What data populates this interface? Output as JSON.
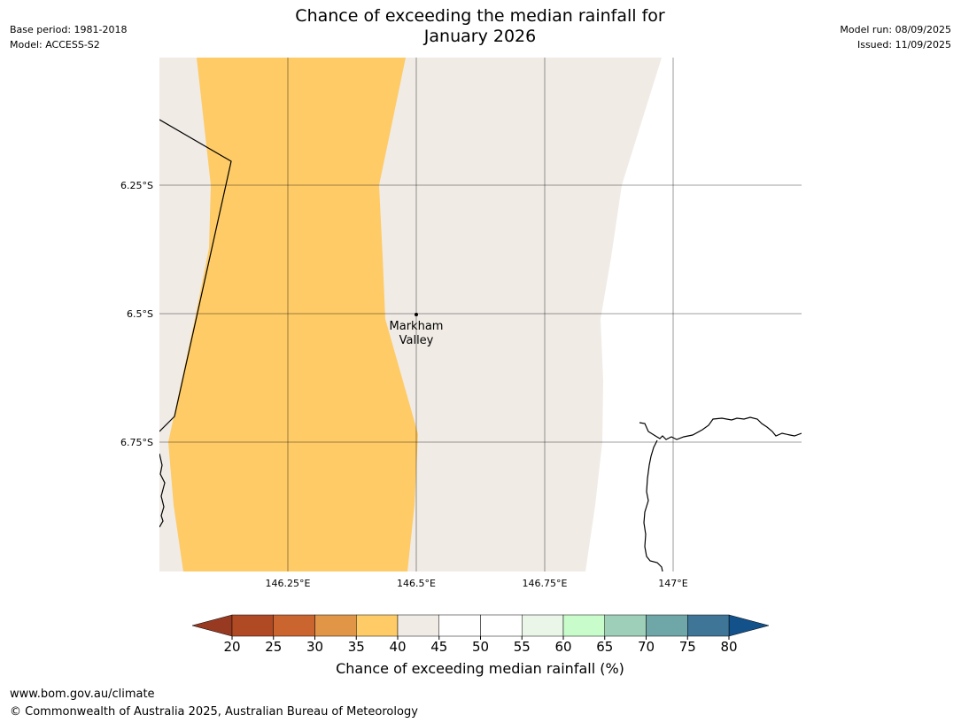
{
  "meta": {
    "base_period": "Base period: 1981-2018",
    "model": "Model: ACCESS-S2",
    "model_run": "Model run: 08/09/2025",
    "issued": "Issued: 11/09/2025"
  },
  "title_line1": "Chance of exceeding the median rainfall for",
  "title_line2": "January 2026",
  "map": {
    "lat_labels": [
      "6.25°S",
      "6.5°S",
      "6.75°S"
    ],
    "lon_labels": [
      "146.25°E",
      "146.5°E",
      "146.75°E",
      "147°E"
    ],
    "place_name_line1": "Markham",
    "place_name_line2": "Valley",
    "zones": [
      {
        "category": "35-40",
        "color": "#fecb66"
      },
      {
        "category": "40-45",
        "color": "#f0ebe5"
      },
      {
        "category": "45-50",
        "color": "#ffffff"
      }
    ]
  },
  "colorbar": {
    "ticks": [
      "20",
      "25",
      "30",
      "35",
      "40",
      "45",
      "50",
      "55",
      "60",
      "65",
      "70",
      "75",
      "80"
    ],
    "colors": [
      "#af4a25",
      "#cb6530",
      "#e09547",
      "#fecb66",
      "#f0ebe5",
      "#ffffff",
      "#ffffff",
      "#e9f6e8",
      "#c8fcca",
      "#9ed0b9",
      "#6fa6a8",
      "#3f7597"
    ],
    "under_color": "#983a22",
    "over_color": "#13518b",
    "label": "Chance of exceeding median rainfall (%)"
  },
  "footer": {
    "url": "www.bom.gov.au/climate",
    "copyright": "© Commonwealth of Australia 2025, Australian Bureau of Meteorology"
  }
}
